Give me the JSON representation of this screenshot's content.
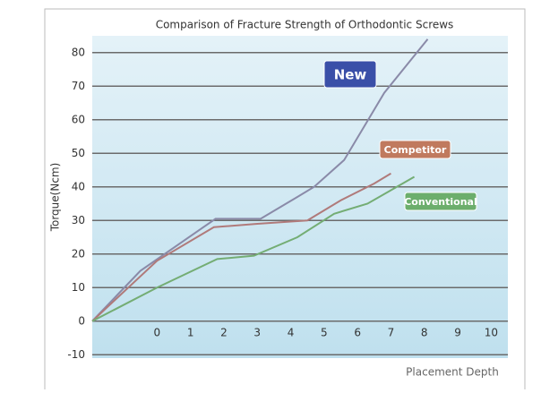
{
  "chart_data": {
    "type": "line",
    "title": "Comparison of Fracture Strength of Orthodontic Screws",
    "x_label": "Placement Depth",
    "y_label": "Torque(Ncm)",
    "xlim": [
      -1.94,
      10.5
    ],
    "ylim": [
      -11,
      85
    ],
    "xticks": [
      0,
      1,
      2,
      3,
      4,
      5,
      6,
      7,
      8,
      9,
      10
    ],
    "yticks": [
      -10,
      0,
      10,
      20,
      30,
      40,
      50,
      60,
      70,
      80
    ],
    "grid": true,
    "series": [
      {
        "name": "New",
        "color": "#8a8aa8",
        "label_color": "#3a4fa8",
        "x": [
          -1.94,
          -0.5,
          1.75,
          3.1,
          4.2,
          4.7,
          5.6,
          6.8,
          8.1
        ],
        "values": [
          0,
          15,
          30.5,
          30.5,
          37,
          40,
          48,
          68,
          84
        ]
      },
      {
        "name": "Competitor",
        "color": "#b07a7a",
        "label_color": "#c07a5e",
        "x": [
          -1.94,
          0,
          1.7,
          3.0,
          4.5,
          5.5,
          6.5,
          7.0
        ],
        "values": [
          0,
          18,
          28,
          29,
          30,
          36,
          41,
          44
        ]
      },
      {
        "name": "Conventional",
        "color": "#74ad74",
        "label_color": "#6cae6c",
        "x": [
          -1.94,
          0,
          1.8,
          2.9,
          4.2,
          5.3,
          6.3,
          7.0,
          7.7
        ],
        "values": [
          0,
          10,
          18.5,
          19.5,
          25,
          32,
          35,
          39,
          43
        ]
      }
    ]
  }
}
